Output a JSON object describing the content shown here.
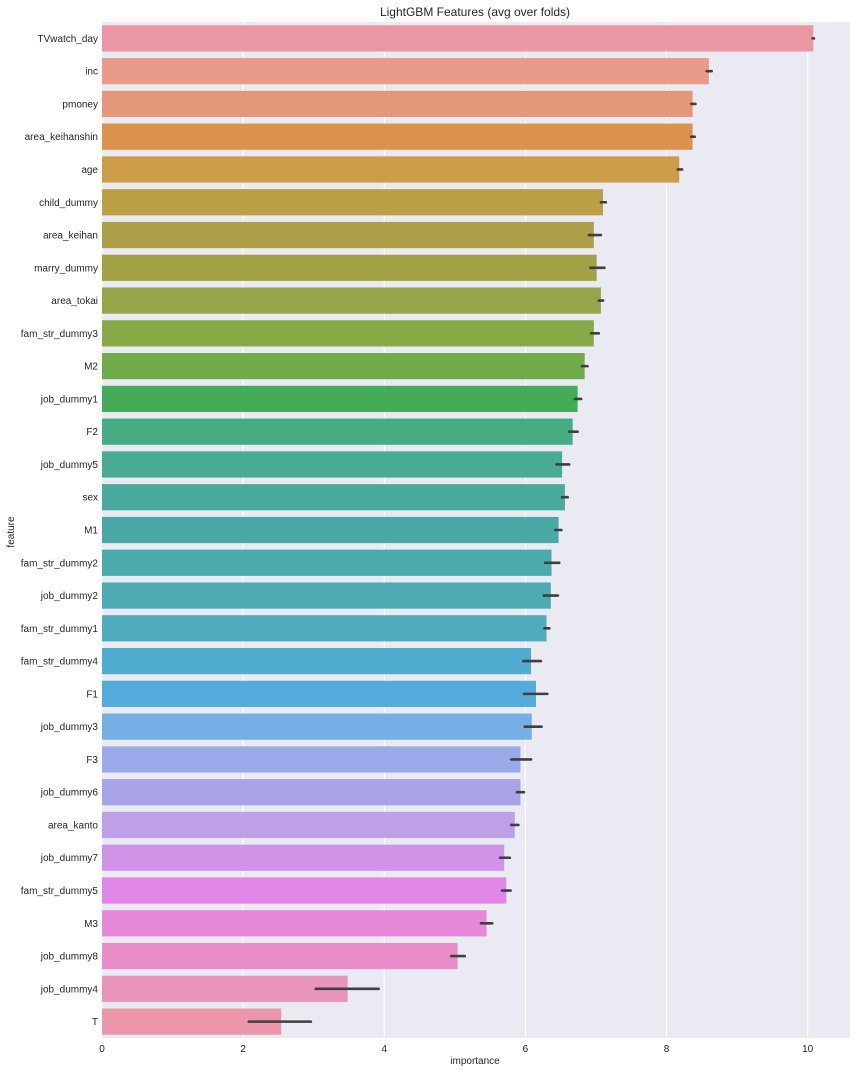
{
  "chart_data": {
    "type": "bar",
    "orientation": "horizontal",
    "title": "LightGBM Features (avg over folds)",
    "xlabel": "importance",
    "ylabel": "feature",
    "xlim": [
      0,
      10.6
    ],
    "xticks": [
      0,
      2,
      4,
      6,
      8,
      10
    ],
    "grid": true,
    "categories": [
      "TVwatch_day",
      "inc",
      "pmoney",
      "area_keihanshin",
      "age",
      "child_dummy",
      "area_keihan",
      "marry_dummy",
      "area_tokai",
      "fam_str_dummy3",
      "M2",
      "job_dummy1",
      "F2",
      "job_dummy5",
      "sex",
      "M1",
      "fam_str_dummy2",
      "job_dummy2",
      "fam_str_dummy1",
      "fam_str_dummy4",
      "F1",
      "job_dummy3",
      "F3",
      "job_dummy6",
      "area_kanto",
      "job_dummy7",
      "fam_str_dummy5",
      "M3",
      "job_dummy8",
      "job_dummy4",
      "T"
    ],
    "values": [
      10.08,
      8.6,
      8.37,
      8.37,
      8.18,
      7.1,
      6.97,
      7.01,
      7.07,
      6.97,
      6.84,
      6.74,
      6.67,
      6.52,
      6.56,
      6.47,
      6.37,
      6.36,
      6.3,
      6.08,
      6.15,
      6.09,
      5.93,
      5.93,
      5.85,
      5.7,
      5.73,
      5.45,
      5.04,
      3.48,
      2.54
    ],
    "errors": [
      [
        10.07,
        10.09
      ],
      [
        8.57,
        8.64
      ],
      [
        8.35,
        8.41
      ],
      [
        8.35,
        8.4
      ],
      [
        8.16,
        8.22
      ],
      [
        7.07,
        7.14
      ],
      [
        6.9,
        7.07
      ],
      [
        6.92,
        7.12
      ],
      [
        7.04,
        7.1
      ],
      [
        6.93,
        7.04
      ],
      [
        6.8,
        6.88
      ],
      [
        6.7,
        6.79
      ],
      [
        6.62,
        6.74
      ],
      [
        6.44,
        6.62
      ],
      [
        6.52,
        6.6
      ],
      [
        6.42,
        6.51
      ],
      [
        6.28,
        6.48
      ],
      [
        6.26,
        6.46
      ],
      [
        6.27,
        6.34
      ],
      [
        5.97,
        6.22
      ],
      [
        5.98,
        6.31
      ],
      [
        5.99,
        6.23
      ],
      [
        5.8,
        6.08
      ],
      [
        5.88,
        5.98
      ],
      [
        5.8,
        5.9
      ],
      [
        5.64,
        5.78
      ],
      [
        5.67,
        5.79
      ],
      [
        5.37,
        5.53
      ],
      [
        4.95,
        5.14
      ],
      [
        3.03,
        3.92
      ],
      [
        2.08,
        2.96
      ]
    ],
    "colors": [
      "#ea96a3",
      "#e99a89",
      "#e5977a",
      "#db934c",
      "#cd9c48",
      "#bb9f47",
      "#ae9e47",
      "#a2a146",
      "#95a547",
      "#87a947",
      "#70ab49",
      "#44ac59",
      "#47ac84",
      "#49ab94",
      "#4aaa9e",
      "#4aa9a4",
      "#4baaac",
      "#4eabb4",
      "#4eacbd",
      "#50add0",
      "#54abdb",
      "#76aee6",
      "#9aaae8",
      "#a9a3e8",
      "#bea0e9",
      "#cf93e8",
      "#e086e6",
      "#e788d9",
      "#e98ec9",
      "#e994b9",
      "#ea96ab"
    ]
  }
}
